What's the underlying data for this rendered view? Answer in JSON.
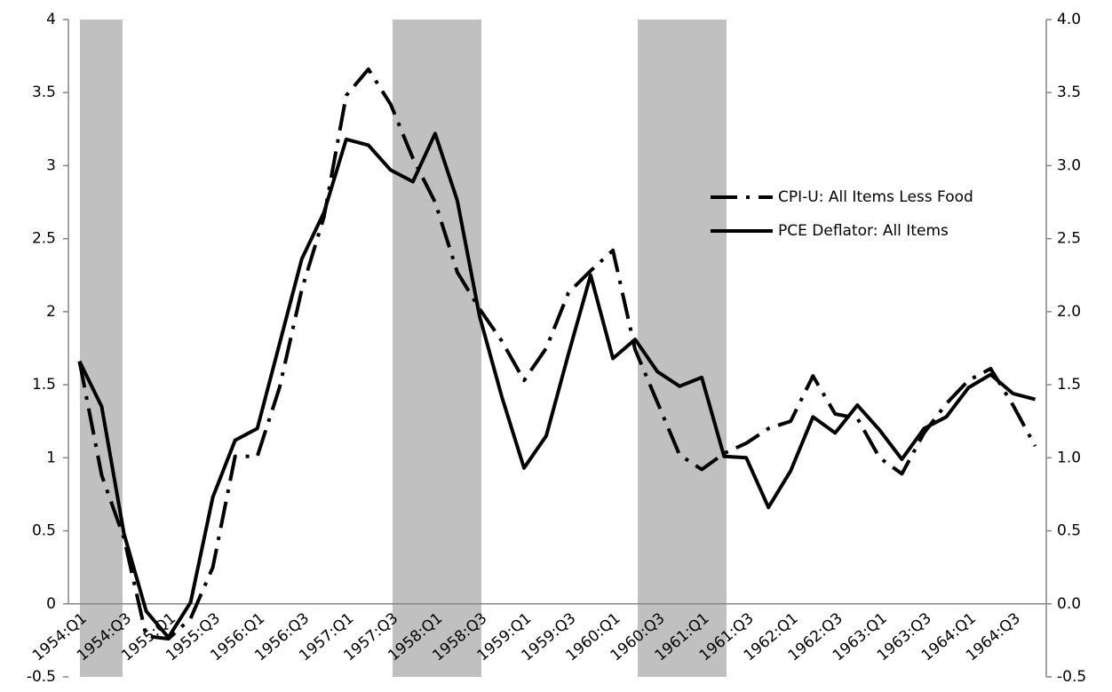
{
  "chart_data": {
    "type": "line",
    "categories": [
      "1954:Q1",
      null,
      "1954:Q3",
      null,
      "1955:Q1",
      null,
      "1955:Q3",
      null,
      "1956:Q1",
      null,
      "1956:Q3",
      null,
      "1957:Q1",
      null,
      "1957:Q3",
      null,
      "1958:Q1",
      null,
      "1958:Q3",
      null,
      "1959:Q1",
      null,
      "1959:Q3",
      null,
      "1960:Q1",
      null,
      "1960:Q3",
      null,
      "1961:Q1",
      null,
      "1961:Q3",
      null,
      "1962:Q1",
      null,
      "1962:Q3",
      null,
      "1963:Q1",
      null,
      "1963:Q3",
      null,
      "1964:Q1",
      null,
      "1964:Q3",
      null
    ],
    "series": [
      {
        "name": "CPI-U: All Items Less Food",
        "color": "#000000",
        "dash": "dash-dot",
        "values": [
          1.66,
          0.88,
          0.45,
          -0.22,
          -0.24,
          -0.1,
          0.25,
          1.01,
          1.01,
          1.48,
          2.15,
          2.65,
          3.48,
          3.66,
          3.42,
          3.05,
          2.75,
          2.27,
          2.02,
          1.8,
          1.53,
          1.75,
          2.13,
          2.28,
          2.42,
          1.74,
          1.38,
          1.02,
          0.92,
          1.03,
          1.1,
          1.2,
          1.25,
          1.56,
          1.3,
          1.27,
          1.0,
          0.89,
          1.17,
          1.37,
          1.53,
          1.61,
          1.36,
          1.08
        ]
      },
      {
        "name": "PCE Deflator: All Items",
        "color": "#000000",
        "dash": "solid",
        "values": [
          1.66,
          1.35,
          0.48,
          -0.05,
          -0.23,
          0.01,
          0.73,
          1.12,
          1.2,
          1.78,
          2.36,
          2.68,
          3.18,
          3.14,
          2.97,
          2.89,
          3.22,
          2.76,
          1.97,
          1.42,
          0.93,
          1.15,
          1.71,
          2.25,
          1.68,
          1.81,
          1.59,
          1.49,
          1.55,
          1.01,
          1.0,
          0.66,
          0.91,
          1.28,
          1.17,
          1.36,
          1.19,
          0.99,
          1.2,
          1.28,
          1.48,
          1.57,
          1.44,
          1.4
        ]
      }
    ],
    "ylim": [
      -0.5,
      4
    ],
    "yticks": [
      -0.5,
      0,
      0.5,
      1,
      1.5,
      2,
      2.5,
      3,
      3.5,
      4
    ],
    "y2lim": [
      -0.5,
      4
    ],
    "y2ticks": [
      {
        "value": -0.5,
        "label": "-0.5"
      },
      {
        "value": 0,
        "label": "0.0"
      },
      {
        "value": 0.5,
        "label": "0.5"
      },
      {
        "value": 1,
        "label": "1.0"
      },
      {
        "value": 1.5,
        "label": "1.5"
      },
      {
        "value": 2,
        "label": "2.0"
      },
      {
        "value": 2.5,
        "label": "2.5"
      },
      {
        "value": 3,
        "label": "3.0"
      },
      {
        "value": 3.5,
        "label": "3.5"
      },
      {
        "value": 4,
        "label": "4.0"
      }
    ],
    "legend": "right",
    "grid": false
  }
}
